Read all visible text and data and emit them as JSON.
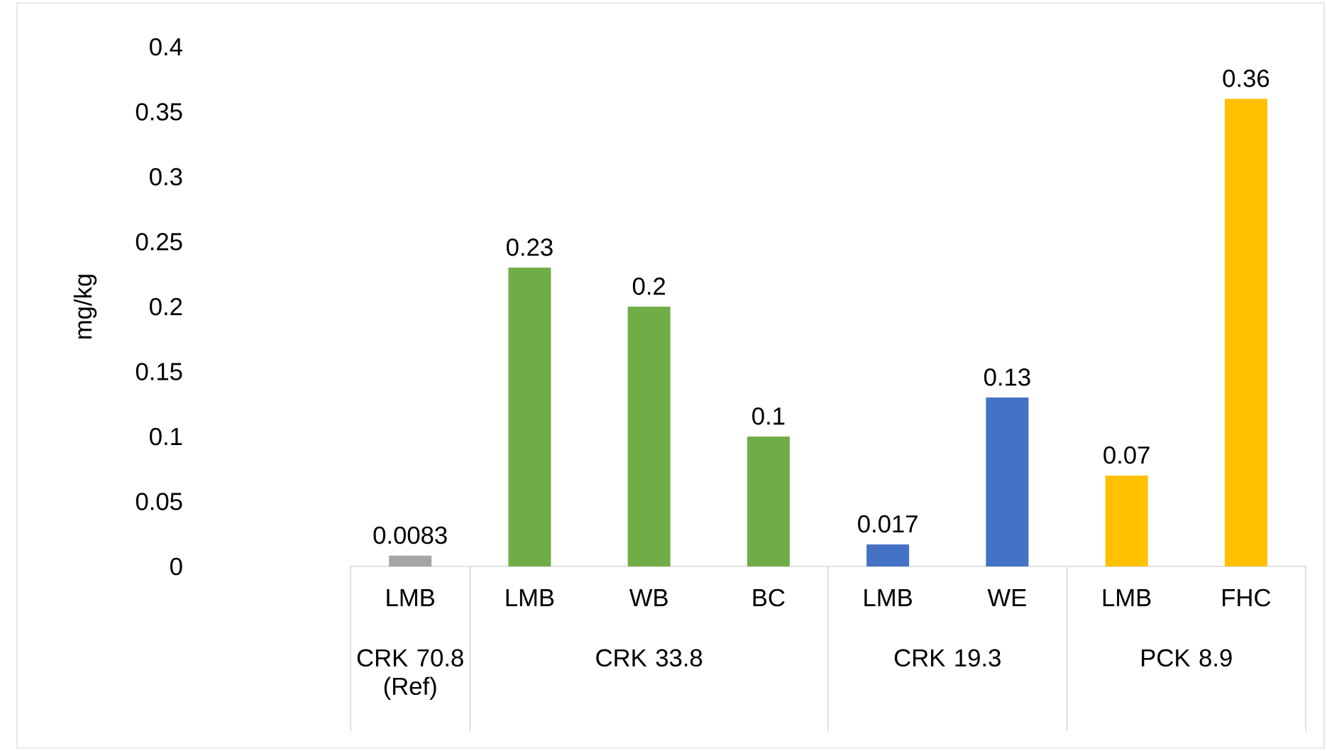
{
  "chart_data": {
    "type": "bar",
    "ylabel": "mg/kg",
    "categories": [
      "LMB",
      "LMB",
      "WB",
      "BC",
      "LMB",
      "WE",
      "LMB",
      "FHC"
    ],
    "values": [
      0.0083,
      0.23,
      0.2,
      0.1,
      0.017,
      0.13,
      0.07,
      0.36
    ],
    "colors": [
      "#a5a5a5",
      "#70ad47",
      "#70ad47",
      "#70ad47",
      "#4472c4",
      "#4472c4",
      "#ffc000",
      "#ffc000"
    ],
    "annotations": [
      "CRK 70.8 (Ref)",
      "CRK 33.8",
      "CRK 19.3",
      "PCK 8.9"
    ],
    "ylim": [
      0,
      0.4
    ],
    "yticks": [
      0,
      0.05,
      0.1,
      0.15,
      0.2,
      0.25,
      0.3,
      0.35,
      0.4
    ],
    "data_labels": true,
    "grid": false
  }
}
